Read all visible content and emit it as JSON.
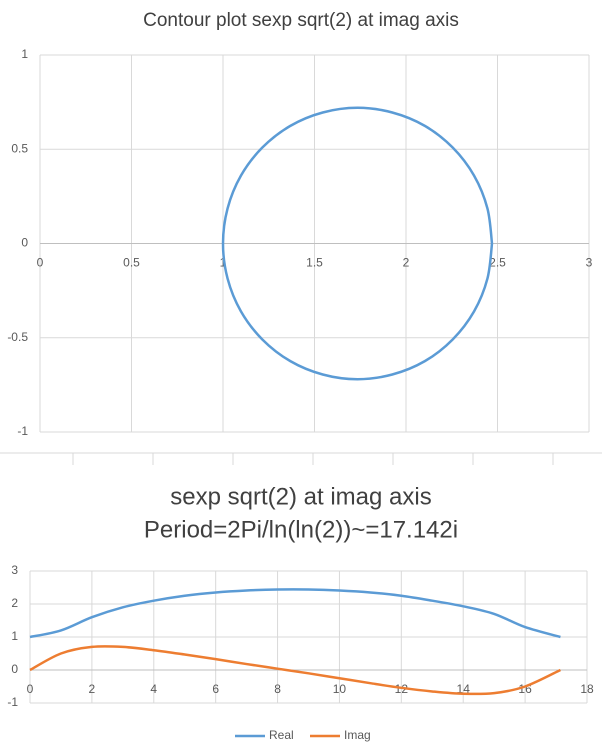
{
  "charts": [
    {
      "type": "line",
      "title": "Contour plot sexp sqrt(2) at imag axis",
      "x": [
        2.47,
        2.445,
        2.372,
        2.255,
        2.103,
        1.925,
        1.735,
        1.545,
        1.368,
        1.215,
        1.098,
        1.025,
        1.0,
        1.025,
        1.098,
        1.215,
        1.368,
        1.545,
        1.735,
        1.925,
        2.103,
        2.255,
        2.372,
        2.445,
        2.47
      ],
      "series": [
        {
          "color": "#5b9bd5",
          "values": [
            0,
            0.186,
            0.36,
            0.509,
            0.624,
            0.695,
            0.72,
            0.695,
            0.624,
            0.509,
            0.36,
            0.186,
            0,
            -0.186,
            -0.36,
            -0.509,
            -0.624,
            -0.695,
            -0.72,
            -0.695,
            -0.624,
            -0.509,
            -0.36,
            -0.186,
            0
          ]
        }
      ],
      "xlim": [
        0,
        3
      ],
      "xticks": [
        0,
        0.5,
        1,
        1.5,
        2,
        2.5,
        3
      ],
      "ylim": [
        -1,
        1
      ],
      "yticks": [
        -1,
        -0.5,
        0,
        0.5,
        1
      ],
      "grid": true
    },
    {
      "type": "line",
      "title": "sexp sqrt(2) at imag axis",
      "subtitle": "Period=2Pi/ln(ln(2))~=17.142i",
      "x": [
        0,
        1,
        2,
        3,
        4,
        5,
        6,
        7,
        8,
        9,
        10,
        11,
        12,
        13,
        14,
        15,
        16,
        17.142
      ],
      "series": [
        {
          "name": "Real",
          "color": "#5b9bd5",
          "values": [
            1.0,
            1.2,
            1.6,
            1.9,
            2.1,
            2.25,
            2.35,
            2.41,
            2.44,
            2.44,
            2.41,
            2.35,
            2.25,
            2.1,
            1.93,
            1.7,
            1.3,
            1.0
          ]
        },
        {
          "name": "Imag",
          "color": "#ed7d31",
          "values": [
            0,
            0.5,
            0.7,
            0.7,
            0.6,
            0.47,
            0.33,
            0.18,
            0.04,
            -0.1,
            -0.25,
            -0.4,
            -0.54,
            -0.65,
            -0.72,
            -0.7,
            -0.5,
            0
          ]
        }
      ],
      "xlim": [
        0,
        18
      ],
      "xticks": [
        0,
        2,
        4,
        6,
        8,
        10,
        12,
        14,
        16,
        18
      ],
      "ylim": [
        -1,
        3
      ],
      "yticks": [
        -1,
        0,
        1,
        2,
        3
      ],
      "grid": true,
      "legend": "bottom"
    }
  ]
}
